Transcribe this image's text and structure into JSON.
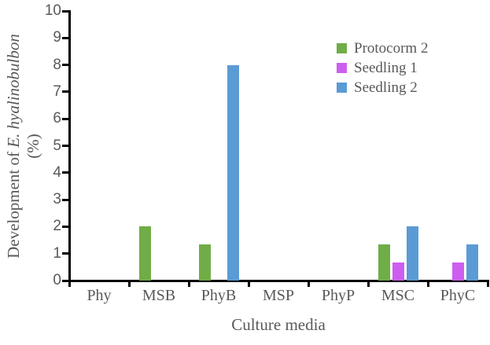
{
  "chart_data": {
    "type": "bar",
    "title": "",
    "xlabel": "Culture media",
    "ylabel_prefix": "Development of ",
    "ylabel_species": "E. hyalinobulbon",
    "ylabel_unit": "(%)",
    "categories": [
      "Phy",
      "MSB",
      "PhyB",
      "MSP",
      "PhyP",
      "MSC",
      "PhyC"
    ],
    "series": [
      {
        "name": "Protocorm 2",
        "color": "#70AD47",
        "values": [
          0,
          2,
          1.33,
          0,
          0,
          1.33,
          0
        ]
      },
      {
        "name": "Seedling 1",
        "color": "#CD5FF0",
        "values": [
          0,
          0,
          0,
          0,
          0,
          0.67,
          0.67
        ]
      },
      {
        "name": "Seedling 2",
        "color": "#5B9BD5",
        "values": [
          0,
          0,
          8,
          0,
          0,
          2,
          1.33
        ]
      }
    ],
    "ylim": [
      0,
      10
    ],
    "yticks": [
      0,
      1,
      2,
      3,
      4,
      5,
      6,
      7,
      8,
      9,
      10
    ],
    "legend_position": "top-right",
    "grid": false
  },
  "colors": {
    "text": "#595959",
    "axis": "#000000",
    "background": "#FFFFFF"
  }
}
